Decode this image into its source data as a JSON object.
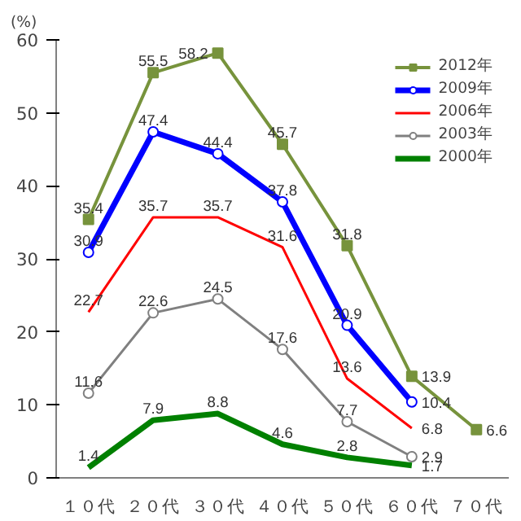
{
  "chart_data": {
    "type": "line",
    "ylabel": "(%)",
    "categories": [
      "１０代",
      "２０代",
      "３０代",
      "４０代",
      "５０代",
      "６０代",
      "７０代"
    ],
    "series": [
      {
        "name": "2012年",
        "color": "#77933c",
        "marker": "square",
        "values": [
          35.4,
          55.5,
          58.2,
          45.7,
          31.8,
          13.9,
          6.6
        ]
      },
      {
        "name": "2009年",
        "color": "#0000ff",
        "marker": "circle",
        "values": [
          30.9,
          47.4,
          44.4,
          37.8,
          20.9,
          10.4,
          null
        ]
      },
      {
        "name": "2006年",
        "color": "#ff0000",
        "marker": "none",
        "values": [
          22.7,
          35.7,
          35.7,
          31.6,
          13.6,
          6.8,
          null
        ]
      },
      {
        "name": "2003年",
        "color": "#808080",
        "marker": "circle",
        "values": [
          11.6,
          22.6,
          24.5,
          17.6,
          7.7,
          2.9,
          null
        ]
      },
      {
        "name": "2000年",
        "color": "#008000",
        "marker": "none",
        "values": [
          1.4,
          7.9,
          8.8,
          4.6,
          2.8,
          1.7,
          null
        ]
      }
    ],
    "ylim": [
      0,
      60
    ],
    "yticks": [
      0,
      10,
      20,
      30,
      40,
      50,
      60
    ],
    "grid": false,
    "legend": "top right",
    "data_labels": true
  }
}
